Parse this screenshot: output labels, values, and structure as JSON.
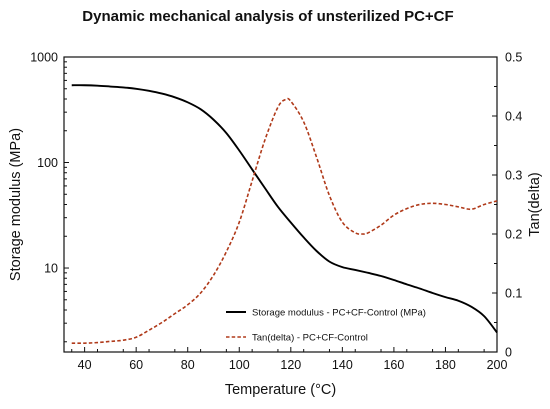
{
  "chart_data": {
    "type": "line",
    "title": "Dynamic mechanical analysis of unsterilized PC+CF",
    "xlabel": "Temperature (°C)",
    "ylabel_left": "Storage modulus (MPa)",
    "ylabel_right": "Tan(delta)",
    "xlim": [
      32,
      200
    ],
    "ylim_left": [
      1.6,
      1000
    ],
    "ylim_left_scale": "log",
    "ylim_right": [
      0,
      0.5
    ],
    "x_ticks": [
      "40",
      "60",
      "80",
      "100",
      "120",
      "140",
      "160",
      "180",
      "200"
    ],
    "y_left_ticks": [
      "10",
      "100",
      "1000"
    ],
    "y_right_ticks": [
      "0",
      "0.1",
      "0.2",
      "0.3",
      "0.4",
      "0.5"
    ],
    "grid": false,
    "legend_position": "bottom-right",
    "series": [
      {
        "name": "Storage modulus - PC+CF-Control (MPa)",
        "axis": "left",
        "color": "#000000",
        "style": "solid",
        "x": [
          35,
          40,
          45,
          50,
          55,
          60,
          65,
          70,
          75,
          80,
          85,
          90,
          95,
          100,
          105,
          110,
          115,
          120,
          125,
          130,
          135,
          140,
          145,
          150,
          155,
          160,
          165,
          170,
          175,
          180,
          185,
          190,
          195,
          200
        ],
        "y": [
          540,
          540,
          535,
          525,
          515,
          500,
          478,
          450,
          415,
          372,
          320,
          255,
          190,
          130,
          86,
          57,
          38,
          27,
          19.5,
          14.5,
          11.5,
          10.2,
          9.6,
          9.0,
          8.4,
          7.7,
          7.0,
          6.4,
          5.8,
          5.3,
          4.9,
          4.3,
          3.5,
          2.45
        ]
      },
      {
        "name": "Tan(delta) - PC+CF-Control",
        "axis": "right",
        "color": "#b03a1a",
        "style": "dashed",
        "x": [
          35,
          40,
          45,
          50,
          55,
          60,
          65,
          70,
          75,
          80,
          85,
          90,
          95,
          100,
          105,
          110,
          115,
          118,
          120,
          125,
          130,
          135,
          140,
          145,
          148,
          150,
          155,
          160,
          165,
          170,
          175,
          180,
          185,
          190,
          195,
          200
        ],
        "y": [
          0.015,
          0.015,
          0.016,
          0.018,
          0.02,
          0.025,
          0.037,
          0.05,
          0.065,
          0.08,
          0.1,
          0.13,
          0.17,
          0.22,
          0.29,
          0.36,
          0.415,
          0.428,
          0.425,
          0.39,
          0.33,
          0.265,
          0.22,
          0.202,
          0.2,
          0.202,
          0.215,
          0.232,
          0.243,
          0.25,
          0.252,
          0.25,
          0.246,
          0.242,
          0.25,
          0.256
        ]
      }
    ]
  }
}
